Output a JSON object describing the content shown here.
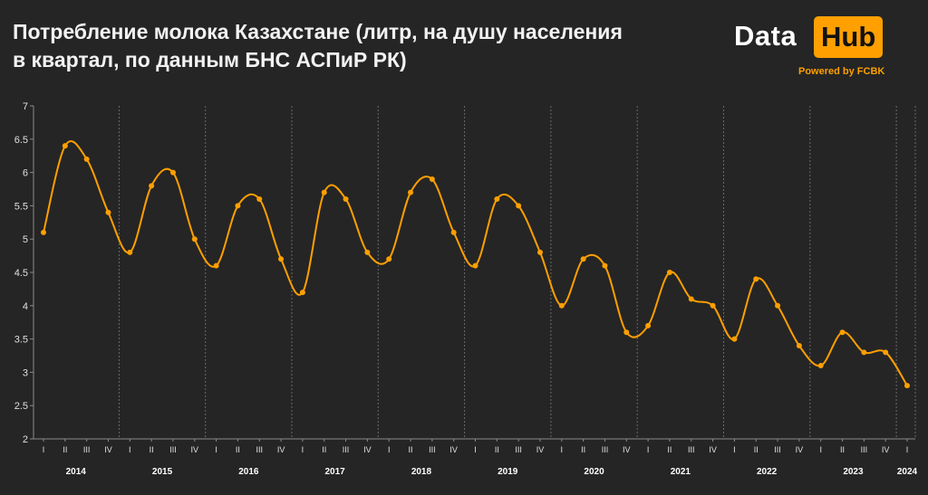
{
  "title_lines": [
    "Потребление молока Казахстане (литр, на душу населения",
    "в квартал, по данным БНС АСПиР РК)"
  ],
  "logo": {
    "data": "Data",
    "hub": "Hub",
    "powered": "Powered by FCBK"
  },
  "colors": {
    "background": "#252525",
    "line": "#ff9f00",
    "accent": "#ff9f00"
  },
  "chart_data": {
    "type": "line",
    "title": "Потребление молока Казахстане (литр, на душу населения в квартал, по данным БНС АСПиР РК)",
    "xlabel": "",
    "ylabel": "",
    "ylim": [
      2,
      7
    ],
    "yticks": [
      "2",
      "2.5",
      "3",
      "3.5",
      "4",
      "4.5",
      "5",
      "5.5",
      "6",
      "6.5",
      "7"
    ],
    "years": [
      "2014",
      "2015",
      "2016",
      "2017",
      "2018",
      "2019",
      "2020",
      "2021",
      "2022",
      "2023",
      "2024"
    ],
    "quarters": [
      "I",
      "II",
      "III",
      "IV"
    ],
    "x": [
      "2014 I",
      "2014 II",
      "2014 III",
      "2014 IV",
      "2015 I",
      "2015 II",
      "2015 III",
      "2015 IV",
      "2016 I",
      "2016 II",
      "2016 III",
      "2016 IV",
      "2017 I",
      "2017 II",
      "2017 III",
      "2017 IV",
      "2018 I",
      "2018 II",
      "2018 III",
      "2018 IV",
      "2019 I",
      "2019 II",
      "2019 III",
      "2019 IV",
      "2020 I",
      "2020 II",
      "2020 III",
      "2020 IV",
      "2021 I",
      "2021 II",
      "2021 III",
      "2021 IV",
      "2022 I",
      "2022 II",
      "2022 III",
      "2022 IV",
      "2023 I",
      "2023 II",
      "2023 III",
      "2023 IV",
      "2024 I"
    ],
    "series": [
      {
        "values": [
          5.1,
          6.4,
          6.2,
          5.4,
          4.8,
          5.8,
          6.0,
          5.0,
          4.6,
          5.5,
          5.6,
          4.7,
          4.2,
          5.7,
          5.6,
          4.8,
          4.7,
          5.7,
          5.9,
          5.1,
          4.6,
          5.6,
          5.5,
          4.8,
          4.0,
          4.7,
          4.6,
          3.6,
          3.7,
          4.5,
          4.1,
          4.0,
          3.5,
          4.4,
          4.0,
          3.4,
          3.1,
          3.6,
          3.3,
          3.3,
          2.8
        ]
      }
    ],
    "grid": "vertical dashed year separators"
  }
}
